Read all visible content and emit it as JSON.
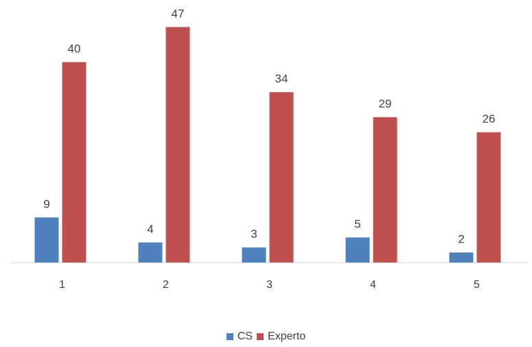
{
  "chart_data": {
    "type": "bar",
    "categories": [
      "1",
      "2",
      "3",
      "4",
      "5"
    ],
    "series": [
      {
        "name": "CS",
        "values": [
          9,
          4,
          3,
          5,
          2
        ],
        "color": "#4f81bd"
      },
      {
        "name": "Experto",
        "values": [
          40,
          47,
          34,
          29,
          26
        ],
        "color": "#c0504d"
      }
    ],
    "title": "",
    "xlabel": "",
    "ylabel": "",
    "ylim": [
      0,
      50
    ],
    "grid": false,
    "legend_position": "bottom",
    "data_labels": true,
    "colors": {
      "axis": "#d9d9d9",
      "text": "#404040"
    }
  }
}
